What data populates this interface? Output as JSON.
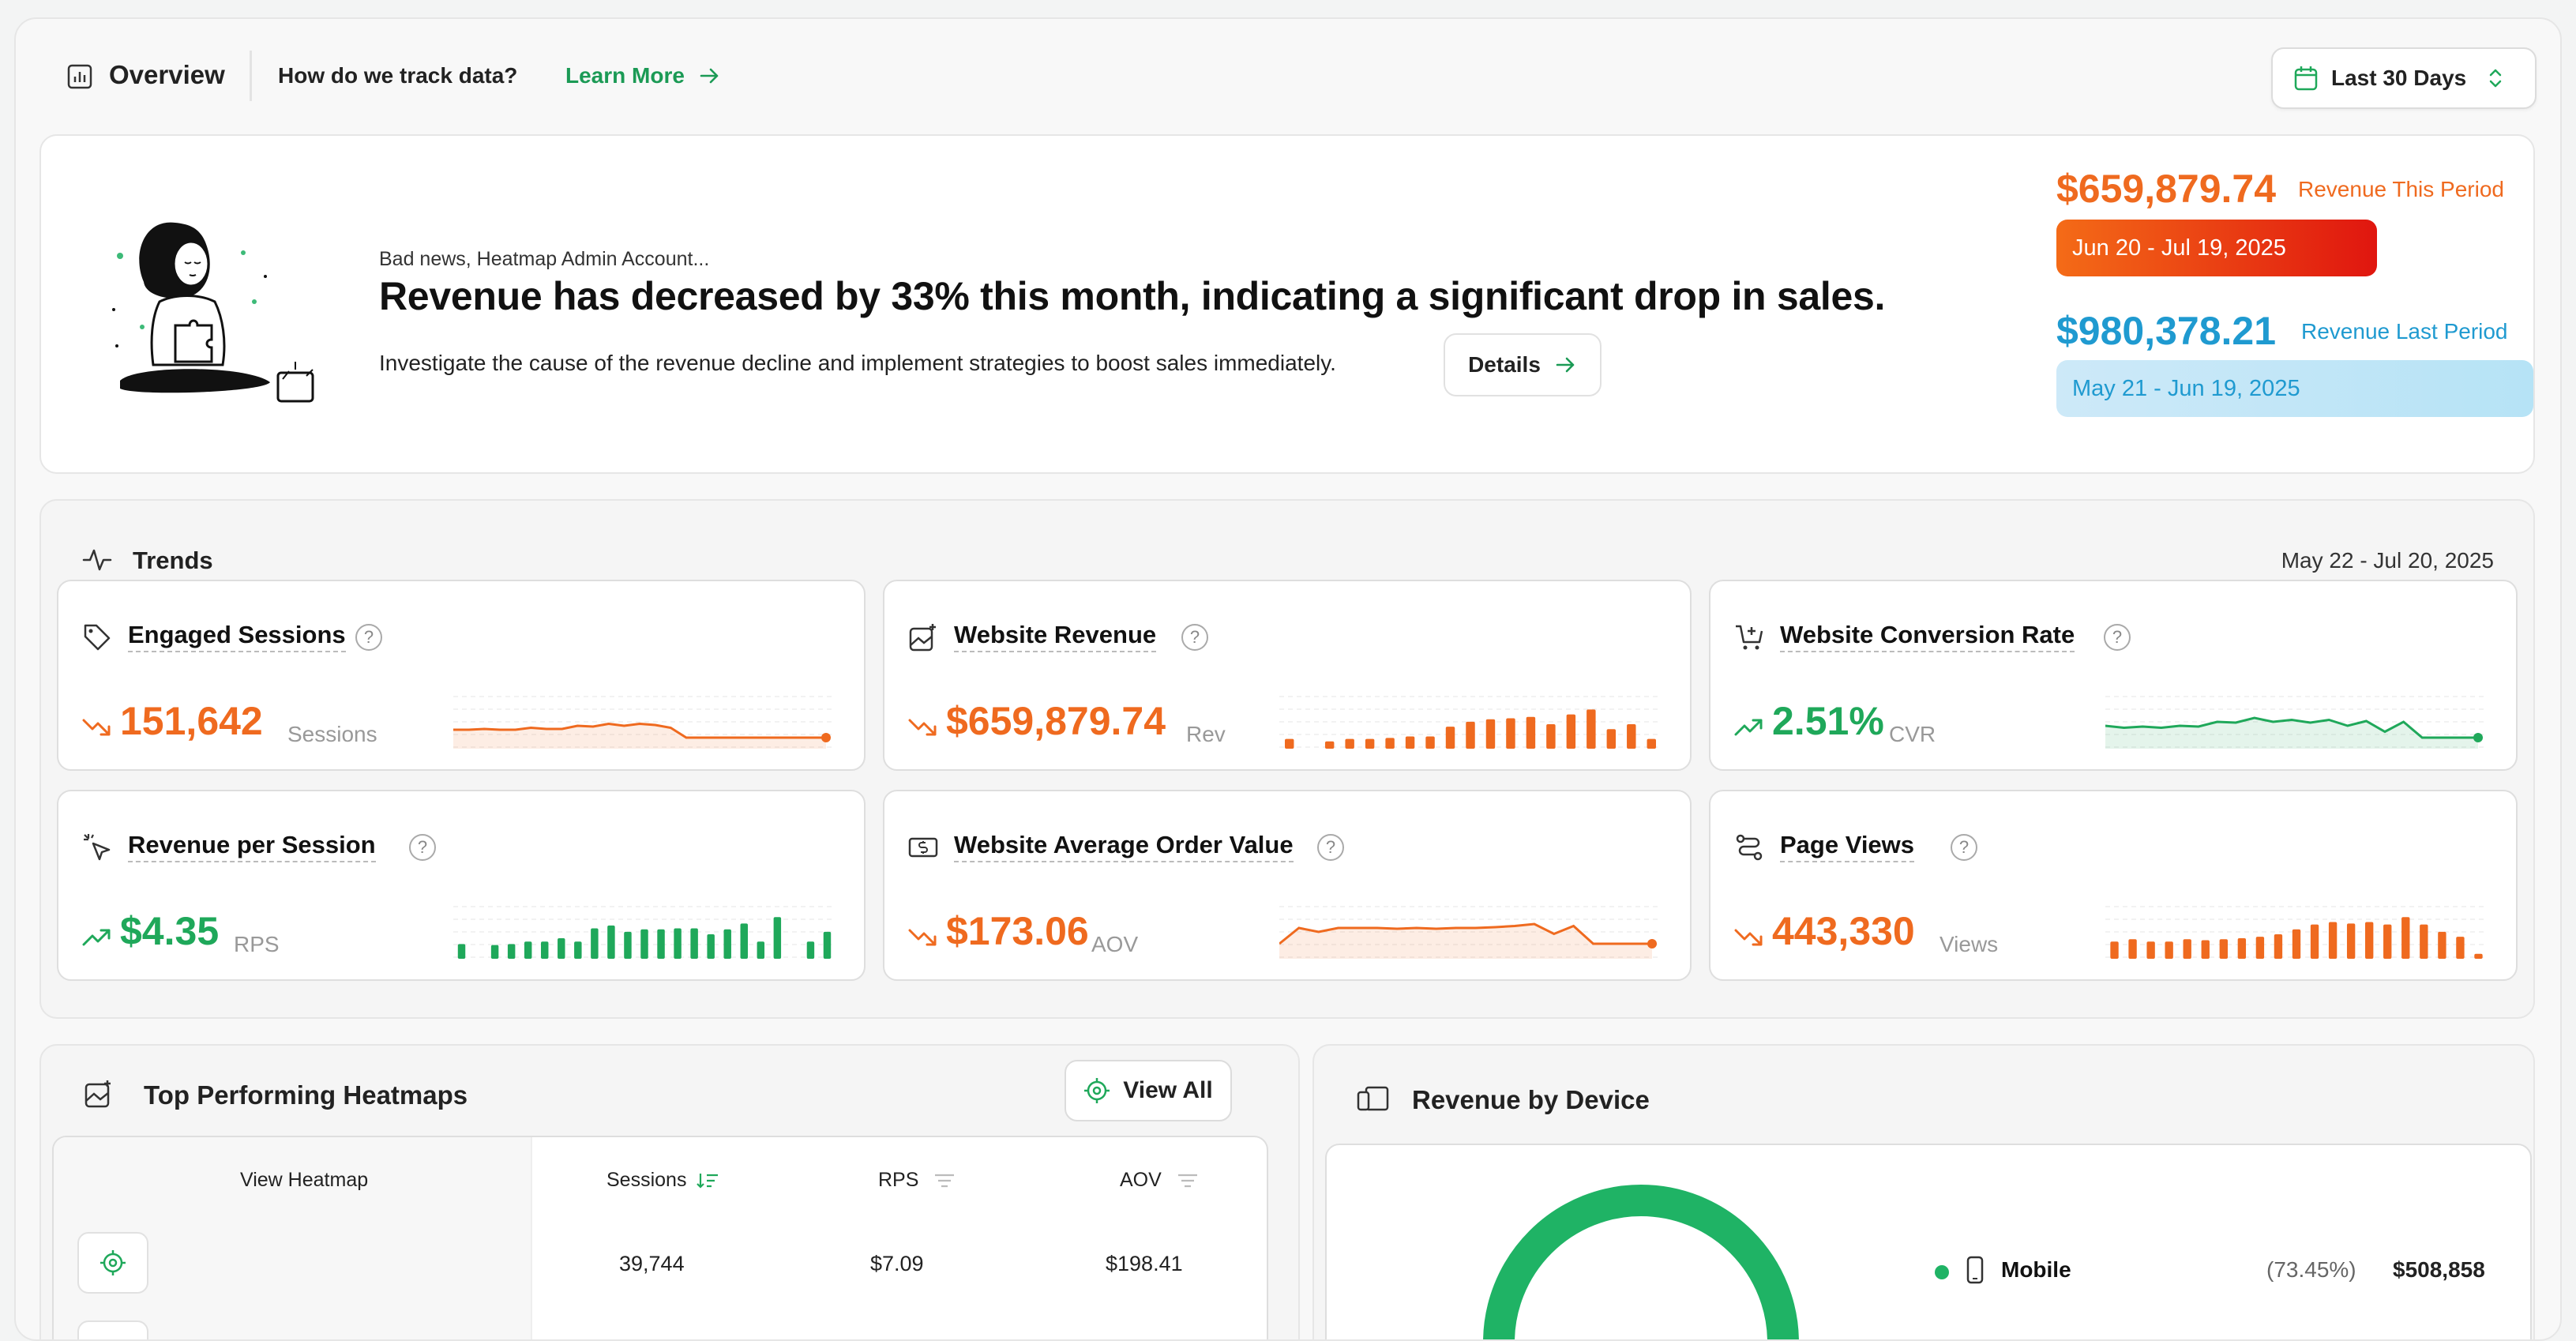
{
  "header": {
    "title": "Overview",
    "track_question": "How do we track data?",
    "learn_more": "Learn More",
    "date_selector": "Last 30 Days"
  },
  "banner": {
    "kicker": "Bad news, Heatmap Admin Account...",
    "headline": "Revenue has decreased by 33% this month, indicating a significant drop in sales.",
    "subtext": "Investigate the cause of the revenue decline and implement strategies to boost sales immediately.",
    "details_label": "Details",
    "revenue_this_value": "$659,879.74",
    "revenue_this_label": "Revenue This Period",
    "revenue_this_range": "Jun 20 - Jul 19, 2025",
    "revenue_last_value": "$980,378.21",
    "revenue_last_label": "Revenue Last Period",
    "revenue_last_range": "May 21 - Jun 19, 2025"
  },
  "trends": {
    "title": "Trends",
    "range": "May 22 - Jul 20, 2025",
    "cards": [
      {
        "title": "Engaged Sessions",
        "value": "151,642",
        "unit": "Sessions",
        "direction": "down",
        "color": "#ef6a1f",
        "icon": "tag-icon",
        "chart": "line",
        "spark": [
          0.2,
          0.2,
          0.22,
          0.2,
          0.2,
          0.25,
          0.22,
          0.22,
          0.3,
          0.28,
          0.35,
          0.3,
          0.35,
          0.32,
          0.25,
          0.0,
          0.0,
          0.0,
          0.0,
          0.0,
          0.0,
          0.0,
          0.0,
          0.0,
          0.0
        ]
      },
      {
        "title": "Website Revenue",
        "value": "$659,879.74",
        "unit": "Rev",
        "direction": "down",
        "color": "#ef6a1f",
        "icon": "image-sparkle-icon",
        "chart": "bar",
        "spark": [
          0.2,
          0,
          0.15,
          0.2,
          0.2,
          0.22,
          0.25,
          0.25,
          0.45,
          0.55,
          0.6,
          0.62,
          0.65,
          0.5,
          0.7,
          0.8,
          0.4,
          0.5,
          0.2
        ]
      },
      {
        "title": "Website Conversion Rate",
        "value": "2.51%",
        "unit": "CVR",
        "direction": "up",
        "color": "#1fa85a",
        "icon": "cart-plus-icon",
        "chart": "line",
        "spark": [
          0.3,
          0.25,
          0.28,
          0.25,
          0.3,
          0.28,
          0.4,
          0.38,
          0.5,
          0.4,
          0.45,
          0.38,
          0.45,
          0.3,
          0.42,
          0.15,
          0.4,
          0.0,
          0.0,
          0.0,
          0.0
        ]
      },
      {
        "title": "Revenue per Session",
        "value": "$4.35",
        "unit": "RPS",
        "direction": "up",
        "color": "#1fa85a",
        "icon": "cursor-sparkle-icon",
        "chart": "bar",
        "spark": [
          0.3,
          0,
          0.28,
          0.3,
          0.35,
          0.35,
          0.42,
          0.35,
          0.62,
          0.68,
          0.55,
          0.6,
          0.6,
          0.62,
          0.62,
          0.5,
          0.6,
          0.72,
          0.35,
          0.85,
          0,
          0.35,
          0.55
        ]
      },
      {
        "title": "Website Average Order Value",
        "value": "$173.06",
        "unit": "AOV",
        "direction": "down",
        "color": "#ef6a1f",
        "icon": "money-icon",
        "chart": "line",
        "spark": [
          0.1,
          0.5,
          0.4,
          0.5,
          0.5,
          0.5,
          0.48,
          0.5,
          0.48,
          0.5,
          0.5,
          0.52,
          0.55,
          0.6,
          0.35,
          0.55,
          0.1,
          0.1,
          0.1,
          0.1
        ]
      },
      {
        "title": "Page Views",
        "value": "443,330",
        "unit": "Views",
        "direction": "down",
        "color": "#ef6a1f",
        "icon": "route-icon",
        "chart": "bar",
        "spark": [
          0.35,
          0.4,
          0.35,
          0.35,
          0.4,
          0.38,
          0.4,
          0.42,
          0.45,
          0.5,
          0.6,
          0.7,
          0.75,
          0.72,
          0.75,
          0.7,
          0.85,
          0.7,
          0.55,
          0.45,
          0.1
        ]
      }
    ]
  },
  "heatmaps": {
    "title": "Top Performing Heatmaps",
    "view_all": "View All",
    "columns": [
      "View Heatmap",
      "Sessions",
      "RPS",
      "AOV"
    ],
    "rows": [
      {
        "sessions": "39,744",
        "rps": "$7.09",
        "aov": "$198.41"
      }
    ]
  },
  "device": {
    "title": "Revenue by Device",
    "legend": [
      {
        "name": "Mobile",
        "percent": "(73.45%)",
        "value": "$508,858"
      }
    ]
  }
}
